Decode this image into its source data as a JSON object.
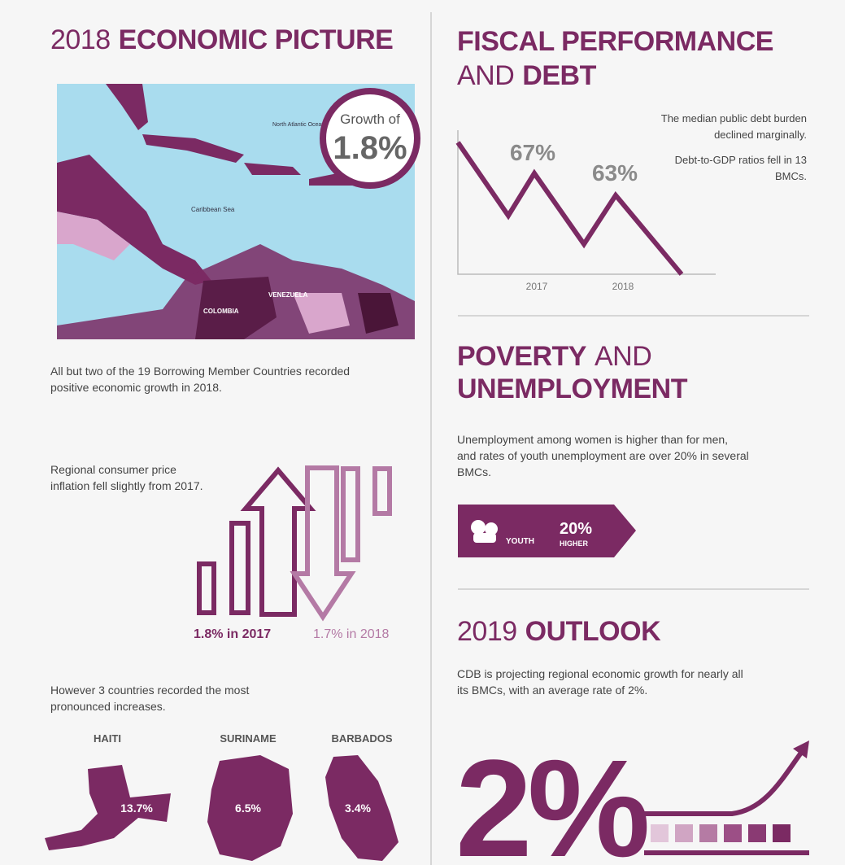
{
  "economic_picture": {
    "title_light": "2018",
    "title_bold": "ECONOMIC PICTURE",
    "badge_label": "Growth of",
    "badge_value": "1.8%",
    "map_labels": [
      "North Atlantic Ocean",
      "Caribbean Sea",
      "VENEZUELA",
      "COLOMBIA"
    ],
    "caption": "All but two of the 19 Borrowing Member Countries recorded positive economic growth in 2018.",
    "inflation_text": "Regional consumer price inflation fell slightly from 2017.",
    "inflation_2017": "1.8% in 2017",
    "inflation_2018": "1.7% in 2018",
    "increases_text": "However 3 countries recorded the most pronounced increases.",
    "countries": [
      {
        "name": "HAITI",
        "value": "13.7%"
      },
      {
        "name": "SURINAME",
        "value": "6.5%"
      },
      {
        "name": "BARBADOS",
        "value": "3.4%"
      }
    ]
  },
  "fiscal": {
    "title_bold_1": "FISCAL PERFORMANCE",
    "title_light": "AND",
    "title_bold_2": "DEBT",
    "debt_2017": "67%",
    "debt_2018": "63%",
    "years": [
      "2017",
      "2018"
    ],
    "note_1": "The median public debt burden declined marginally.",
    "note_2": "Debt-to-GDP ratios fell in 13 BMCs."
  },
  "poverty": {
    "title_bold_1": "POVERTY",
    "title_light": "AND",
    "title_bold_2": "UNEMPLOYMENT",
    "text": "Unemployment among women is higher than for men, and rates of youth unemployment are over 20% in several BMCs.",
    "banner_group": "YOUTH",
    "banner_value": "20%",
    "banner_label": "HIGHER"
  },
  "outlook": {
    "title_light": "2019",
    "title_bold": "OUTLOOK",
    "text": "CDB is projecting regional economic growth for nearly all its BMCs, with an average rate of 2%.",
    "big_value": "2%"
  }
}
